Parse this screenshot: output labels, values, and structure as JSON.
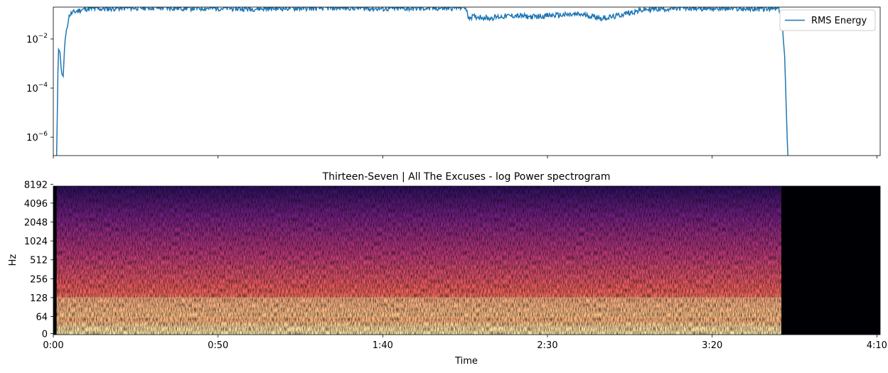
{
  "chart_data": [
    {
      "type": "line",
      "title": "",
      "xlabel": "",
      "ylabel": "",
      "yscale": "log",
      "legend": {
        "position": "top-right",
        "entries": [
          "RMS Energy"
        ]
      },
      "yticks": [
        {
          "base": "10",
          "exp": "−2",
          "value": 0.01
        },
        {
          "base": "10",
          "exp": "−4",
          "value": 0.0001
        },
        {
          "base": "10",
          "exp": "−6",
          "value": 1e-06
        }
      ],
      "series": [
        {
          "name": "RMS Energy",
          "color": "#1f77b4",
          "x_seconds": [
            0,
            1,
            1.5,
            2,
            2.5,
            3,
            3.5,
            4,
            4.5,
            5,
            6,
            8,
            10,
            15,
            20,
            30,
            40,
            50,
            60,
            70,
            80,
            90,
            100,
            110,
            120,
            125,
            126,
            130,
            132,
            135,
            140,
            145,
            150,
            160,
            165,
            166,
            170,
            175,
            180,
            190,
            200,
            210,
            220,
            221,
            222,
            223,
            224
          ],
          "values": [
            1e-07,
            1e-07,
            0.004,
            0.003,
            0.0004,
            0.0003,
            0.008,
            0.02,
            0.06,
            0.1,
            0.12,
            0.15,
            0.17,
            0.17,
            0.18,
            0.19,
            0.18,
            0.18,
            0.17,
            0.18,
            0.18,
            0.19,
            0.17,
            0.18,
            0.18,
            0.2,
            0.08,
            0.08,
            0.07,
            0.08,
            0.09,
            0.08,
            0.09,
            0.1,
            0.08,
            0.07,
            0.08,
            0.12,
            0.16,
            0.18,
            0.18,
            0.17,
            0.17,
            0.1,
            0.002,
            1e-07,
            1e-07
          ]
        }
      ]
    },
    {
      "type": "heatmap",
      "title": "Thirteen-Seven | All The Excuses - log Power spectrogram",
      "xlabel": "Time",
      "ylabel": "Hz",
      "colormap": "magma",
      "x_tick_labels": [
        "0:00",
        "0:50",
        "1:40",
        "2:30",
        "3:20",
        "4:10"
      ],
      "x_ticks_seconds": [
        0,
        50,
        100,
        150,
        200,
        250
      ],
      "y_tick_labels": [
        "0",
        "64",
        "128",
        "256",
        "512",
        "1024",
        "2048",
        "4096",
        "8192"
      ],
      "y_ticks_hz": [
        0,
        64,
        128,
        256,
        512,
        1024,
        2048,
        4096,
        8192
      ],
      "x_range_seconds": [
        0,
        251
      ],
      "audio_range_seconds": [
        1,
        221
      ],
      "bright_bands_hz": [
        [
          30,
          40
        ],
        [
          60,
          130
        ]
      ]
    }
  ]
}
